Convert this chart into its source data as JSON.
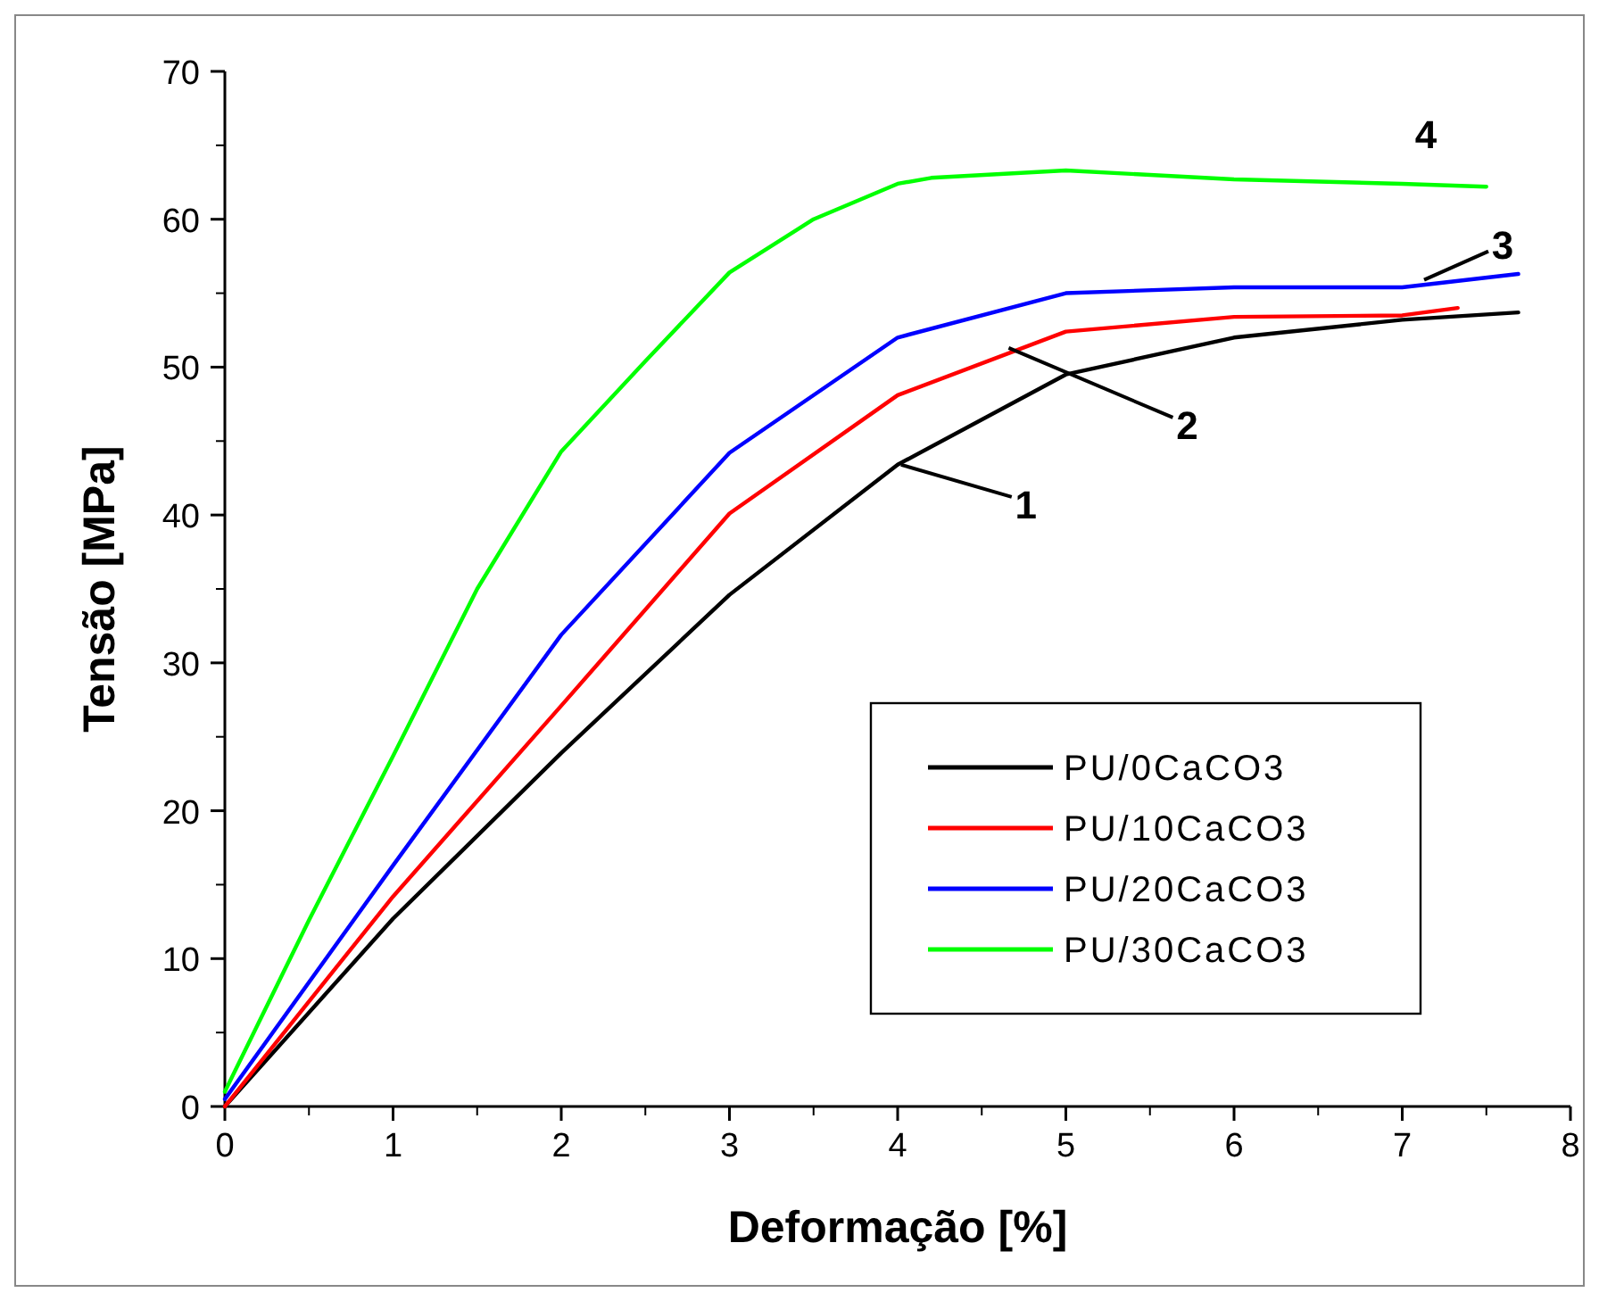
{
  "chart_data": {
    "type": "line",
    "xlabel": "Deformação [%]",
    "ylabel": "Tensão [MPa]",
    "xlim": [
      0,
      8
    ],
    "xticks": [
      0,
      1,
      2,
      3,
      4,
      5,
      6,
      7,
      8
    ],
    "ylim": [
      0,
      70
    ],
    "yticks": [
      0,
      10,
      20,
      30,
      40,
      50,
      60,
      70
    ],
    "grid": false,
    "legend": "bottom right",
    "marker": "none",
    "line_style": "solid",
    "series": [
      {
        "name": "PU/0CaCO3",
        "color": "#000000",
        "x": [
          0,
          1,
          2,
          3,
          4,
          5,
          6,
          7,
          7.69
        ],
        "values": [
          0,
          12.7,
          23.9,
          34.6,
          43.4,
          49.5,
          52,
          53.2,
          53.7
        ]
      },
      {
        "name": "PU/10CaCO3",
        "color": "#ff0000",
        "x": [
          0,
          1,
          2,
          3,
          4,
          5,
          6,
          7,
          7.33
        ],
        "values": [
          0,
          14.2,
          27.1,
          40.1,
          48.1,
          52.4,
          53.4,
          53.5,
          54
        ]
      },
      {
        "name": "PU/20CaCO3",
        "color": "#0000ff",
        "x": [
          0,
          1,
          2,
          3,
          4,
          5,
          6,
          7,
          7.69
        ],
        "values": [
          0.5,
          16.3,
          31.9,
          44.2,
          52,
          55,
          55.4,
          55.4,
          56.3
        ]
      },
      {
        "name": "PU/30CaCO3",
        "color": "#00ff00",
        "x": [
          0,
          0.5,
          1,
          1.5,
          2,
          2.5,
          3,
          3.5,
          4,
          4.2,
          5,
          6,
          7,
          7.5
        ],
        "values": [
          1,
          12.6,
          23.7,
          35,
          44.3,
          50.4,
          56.4,
          60,
          62.4,
          62.8,
          63.3,
          62.7,
          62.4,
          62.2
        ]
      }
    ],
    "annotations": [
      {
        "text": "1",
        "x": 4.02,
        "y": 43.4
      },
      {
        "text": "2",
        "x": 4.66,
        "y": 51.3
      },
      {
        "text": "3",
        "x": 7.13,
        "y": 55.9
      },
      {
        "text": "4",
        "x": 7.14,
        "y": 62.4
      }
    ]
  }
}
